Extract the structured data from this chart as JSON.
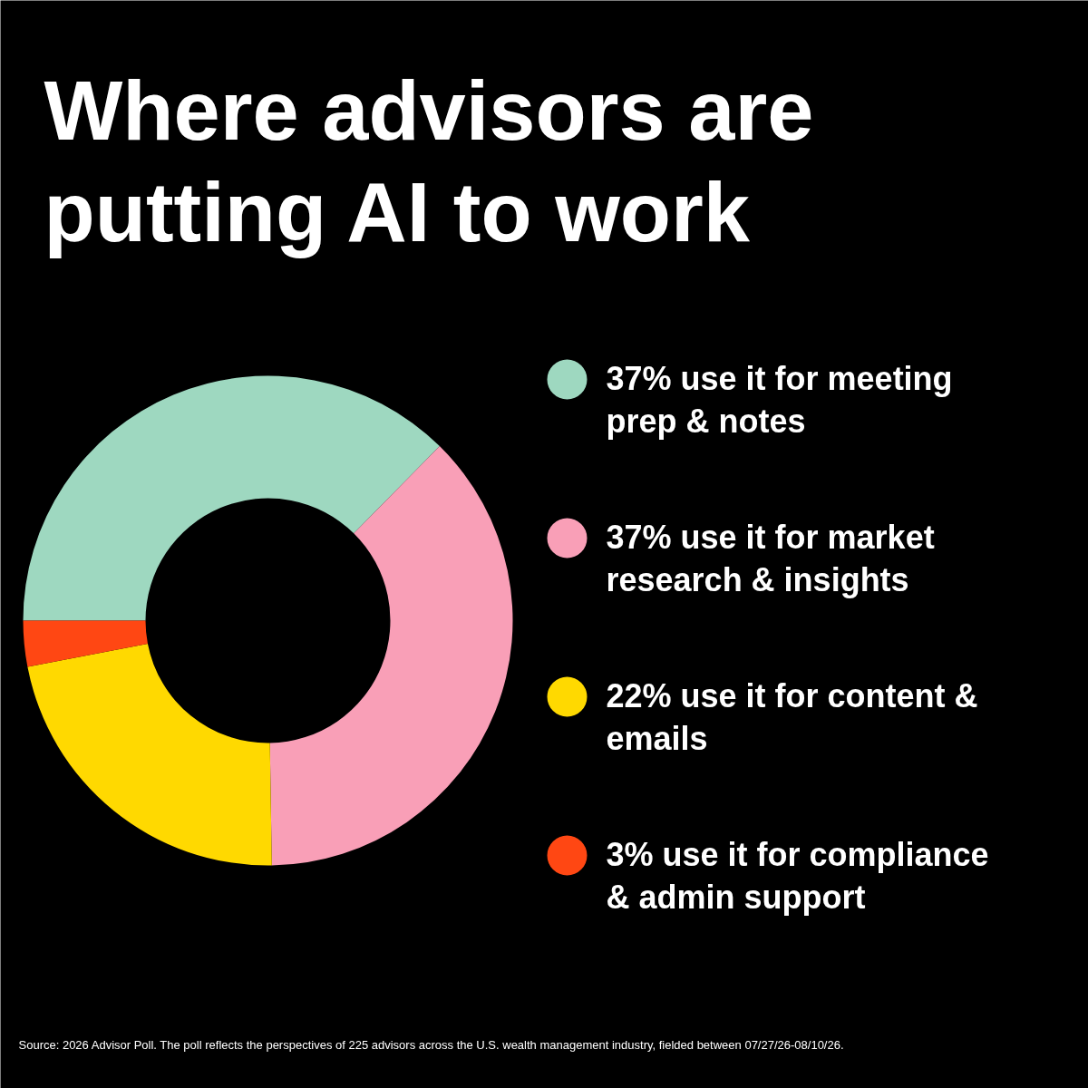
{
  "chart_data": {
    "type": "donut",
    "title": "Where advisors are putting AI to work",
    "categories": [
      "37% use it for meeting prep & notes",
      "37% use it for market research & insights",
      "22% use it for content & emails",
      "3% use it for compliance & admin support"
    ],
    "values": [
      37,
      37,
      22,
      3
    ],
    "colors": [
      "#9ed8c0",
      "#f99fb7",
      "#ffd900",
      "#ff4713"
    ],
    "legend": "right",
    "annotations": [
      "Source: 2026 Advisor Poll. The poll reflects the perspectives of 225 advisors across the U.S. wealth management industry, fielded between 07/27/26-08/10/26."
    ]
  }
}
